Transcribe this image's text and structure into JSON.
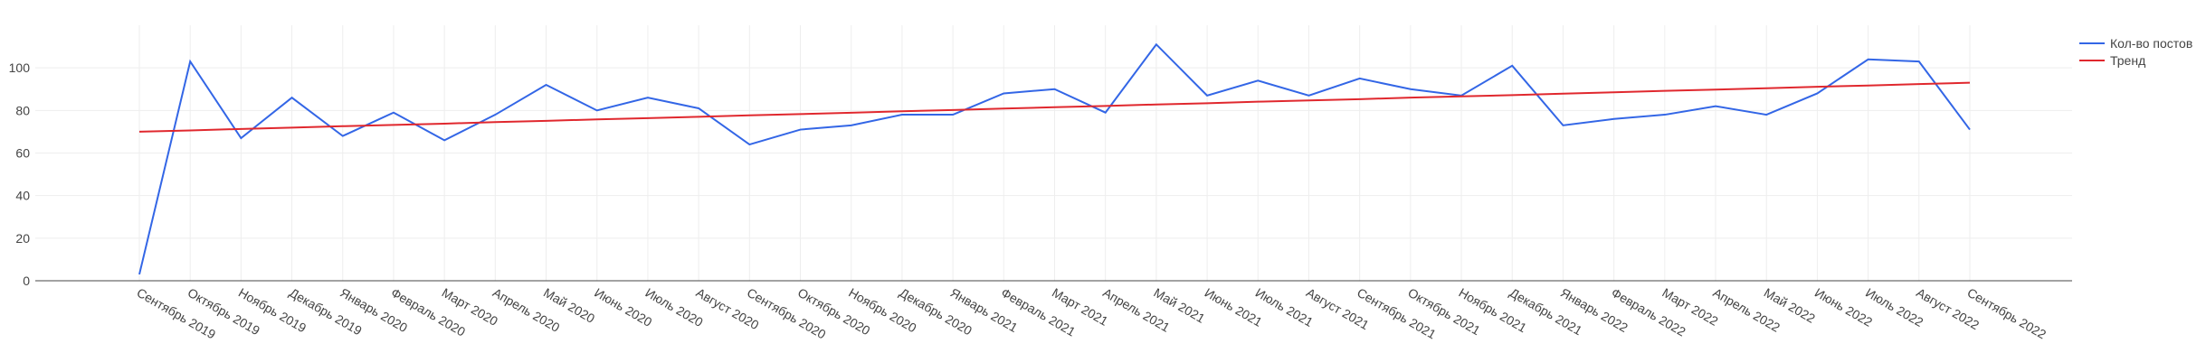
{
  "chart_data": {
    "type": "line",
    "categories": [
      "Сентябрь 2019",
      "Октябрь 2019",
      "Ноябрь 2019",
      "Декабрь 2019",
      "Январь 2020",
      "Февраль 2020",
      "Март 2020",
      "Апрель 2020",
      "Май 2020",
      "Июнь 2020",
      "Июль 2020",
      "Август 2020",
      "Сентябрь 2020",
      "Октябрь 2020",
      "Ноябрь 2020",
      "Декабрь 2020",
      "Январь 2021",
      "Февраль 2021",
      "Март 2021",
      "Апрель 2021",
      "Май 2021",
      "Июнь 2021",
      "Июль 2021",
      "Август 2021",
      "Сентябрь 2021",
      "Октябрь 2021",
      "Ноябрь 2021",
      "Декабрь 2021",
      "Январь 2022",
      "Февраль 2022",
      "Март 2022",
      "Апрель 2022",
      "Май 2022",
      "Июнь 2022",
      "Июль 2022",
      "Август 2022",
      "Сентябрь 2022"
    ],
    "series": [
      {
        "name": "Кол-во постов",
        "color": "#3366e6",
        "values": [
          3,
          103,
          67,
          86,
          68,
          79,
          66,
          78,
          92,
          80,
          86,
          81,
          64,
          71,
          73,
          78,
          78,
          88,
          90,
          79,
          111,
          87,
          94,
          87,
          95,
          90,
          87,
          101,
          73,
          76,
          78,
          82,
          78,
          88,
          104,
          103,
          71
        ]
      },
      {
        "name": "Тренд",
        "color": "#e0282e",
        "values": [
          70.0,
          70.6,
          71.3,
          71.9,
          72.6,
          73.2,
          73.8,
          74.5,
          75.1,
          75.8,
          76.4,
          77.0,
          77.7,
          78.3,
          78.9,
          79.6,
          80.2,
          80.9,
          81.5,
          82.1,
          82.8,
          83.4,
          84.1,
          84.7,
          85.3,
          86.0,
          86.6,
          87.2,
          87.9,
          88.5,
          89.2,
          89.8,
          90.4,
          91.1,
          91.7,
          92.4,
          93.0
        ]
      }
    ],
    "ylim": [
      0,
      120
    ],
    "yticks": [
      0,
      20,
      40,
      60,
      80,
      100
    ],
    "grid": true,
    "legend": "top-right"
  }
}
